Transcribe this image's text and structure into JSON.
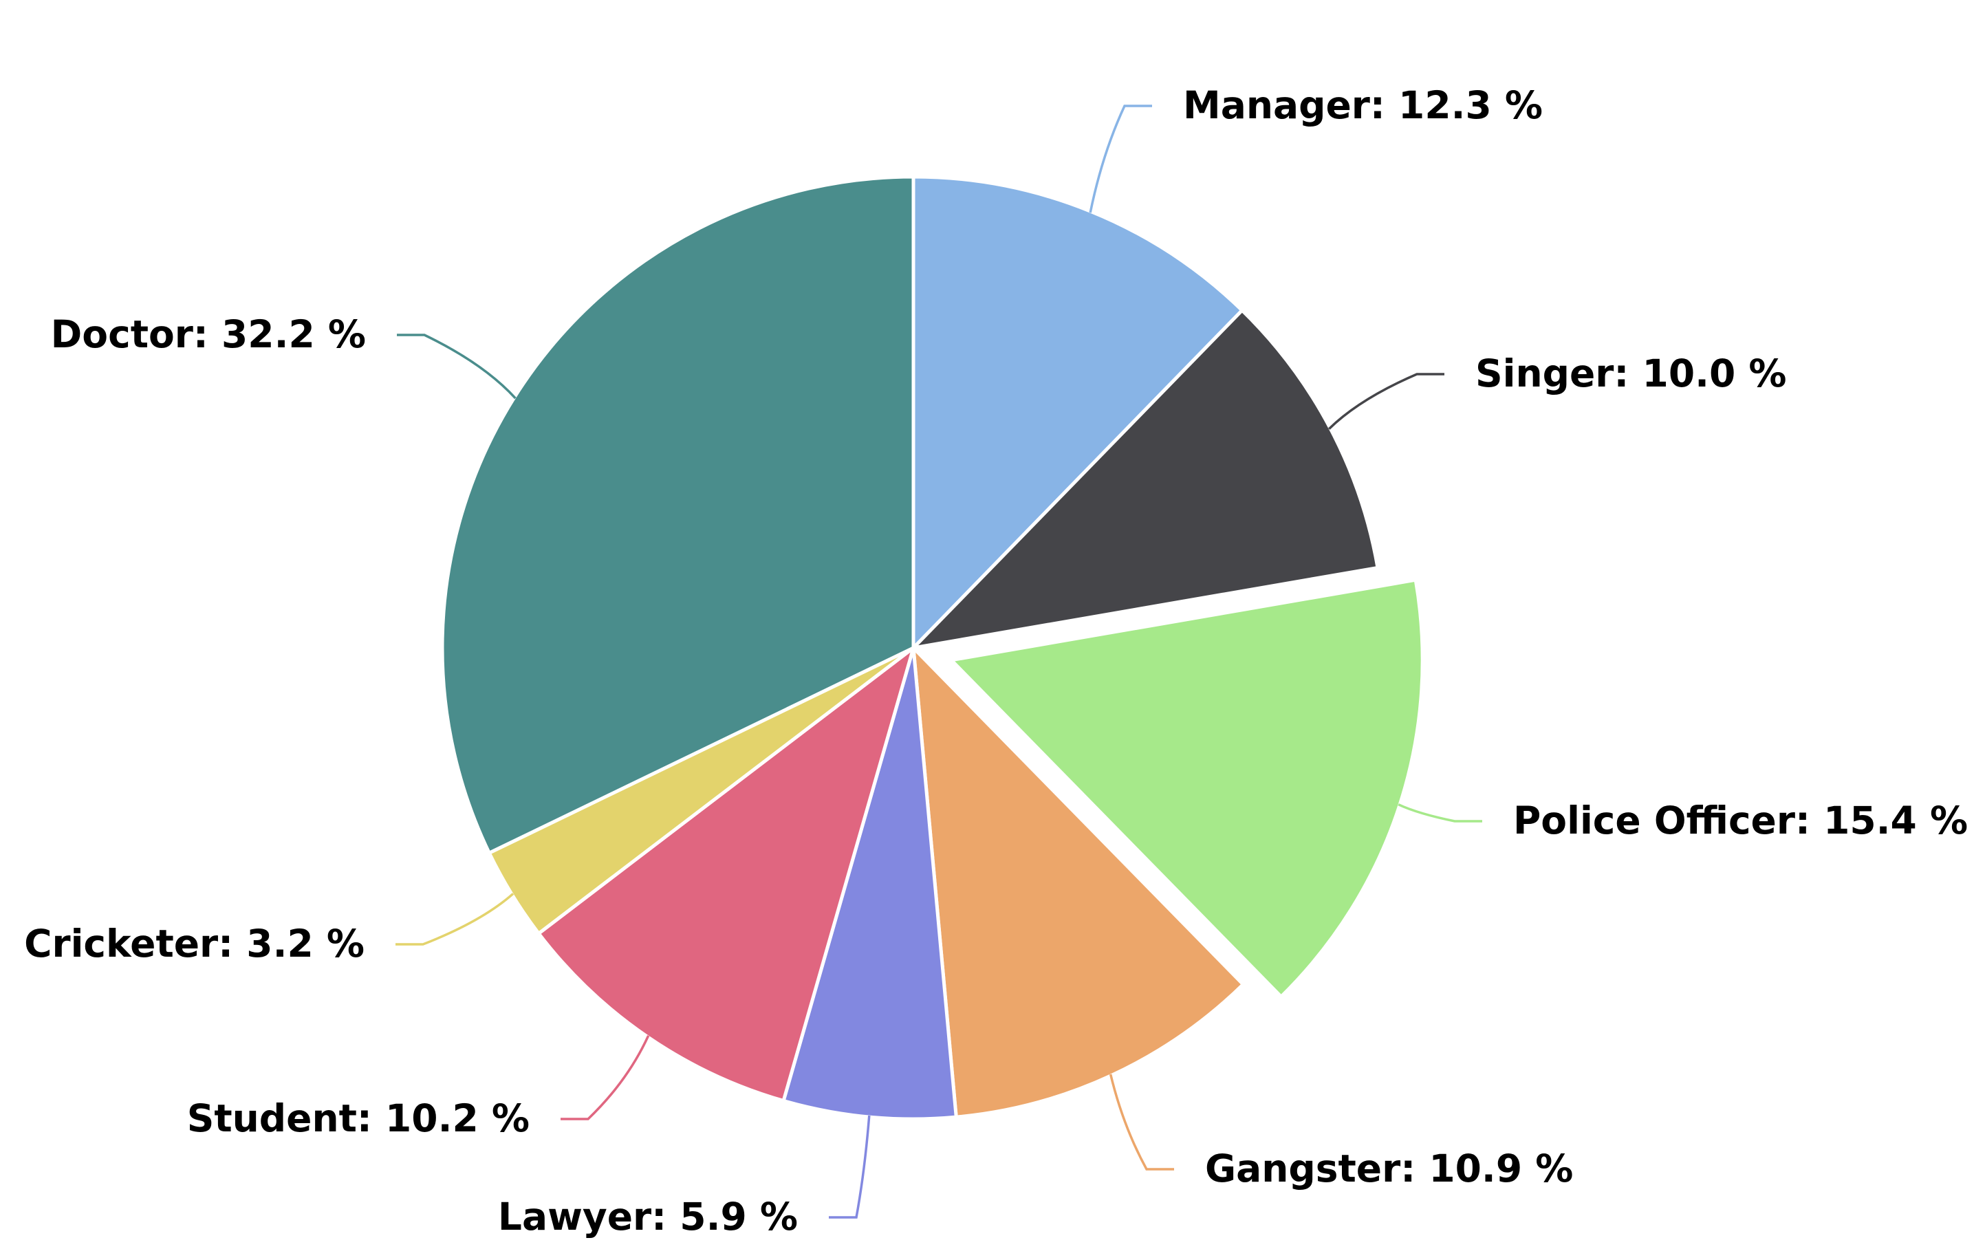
{
  "chart_data": {
    "type": "pie",
    "title": "",
    "series": [
      {
        "name": "",
        "slices": [
          {
            "label": "Manager",
            "value": 12.3,
            "display": "Manager: 12.3 %",
            "color": "#88b4e6",
            "sliced": false
          },
          {
            "label": "Singer",
            "value": 10.0,
            "display": "Singer: 10.0 %",
            "color": "#454549",
            "sliced": false
          },
          {
            "label": "Police Officer",
            "value": 15.4,
            "display": "Police Officer: 15.4 %",
            "color": "#a6e98a",
            "sliced": true
          },
          {
            "label": "Gangster",
            "value": 10.9,
            "display": "Gangster: 10.9 %",
            "color": "#eca66a",
            "sliced": false
          },
          {
            "label": "Lawyer",
            "value": 5.9,
            "display": "Lawyer: 5.9 %",
            "color": "#8288e0",
            "sliced": false
          },
          {
            "label": "Student",
            "value": 10.2,
            "display": "Student: 10.2 %",
            "color": "#e06680",
            "sliced": false
          },
          {
            "label": "Cricketer",
            "value": 3.2,
            "display": "Cricketer: 3.2 %",
            "color": "#e3d36c",
            "sliced": false
          },
          {
            "label": "Doctor",
            "value": 32.2,
            "display": "Doctor: 32.2 %",
            "color": "#4a8d8c",
            "sliced": false
          }
        ]
      }
    ],
    "legend": "none",
    "start_angle": "12 o'clock",
    "direction": "clockwise"
  }
}
